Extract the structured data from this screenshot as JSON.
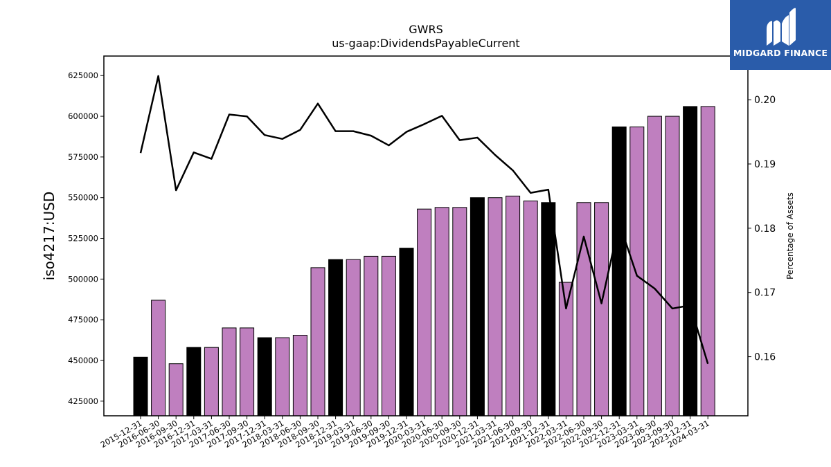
{
  "chart_data": {
    "type": "bar",
    "title": "GWRS",
    "subtitle": "us-gaap:DividendsPayableCurrent",
    "ylabel": "iso4217:USD",
    "y2label": "Percentage of Assets",
    "ylim": [
      416000,
      637000
    ],
    "y2lim": [
      0.1508,
      0.2068
    ],
    "yticks": [
      425000,
      450000,
      475000,
      500000,
      525000,
      550000,
      575000,
      600000,
      625000
    ],
    "y2ticks": [
      0.16,
      0.17,
      0.18,
      0.19,
      0.2
    ],
    "categories": [
      "2015-12-31",
      "2016-06-30",
      "2016-09-30",
      "2016-12-31",
      "2017-03-31",
      "2017-06-30",
      "2017-09-30",
      "2017-12-31",
      "2018-03-31",
      "2018-06-30",
      "2018-09-30",
      "2018-12-31",
      "2019-03-31",
      "2019-06-30",
      "2019-09-30",
      "2019-12-31",
      "2020-03-31",
      "2020-06-30",
      "2020-09-30",
      "2020-12-31",
      "2021-03-31",
      "2021-06-30",
      "2021-09-30",
      "2021-12-31",
      "2022-03-31",
      "2022-06-30",
      "2022-09-30",
      "2022-12-31",
      "2023-03-31",
      "2023-06-30",
      "2023-09-30",
      "2023-12-31",
      "2024-03-31"
    ],
    "series": [
      {
        "type": "bar",
        "values": [
          452000,
          487000,
          448000,
          458000,
          458000,
          470000,
          470000,
          464000,
          464000,
          465500,
          507000,
          512000,
          512000,
          514000,
          514000,
          519000,
          543000,
          544000,
          544000,
          550000,
          550000,
          551000,
          548000,
          547000,
          498000,
          547000,
          547000,
          593500,
          593500,
          600000,
          600000,
          606000,
          606000
        ],
        "colors": [
          "#000000",
          "#bf7fbf",
          "#bf7fbf",
          "#000000",
          "#bf7fbf",
          "#bf7fbf",
          "#bf7fbf",
          "#000000",
          "#bf7fbf",
          "#bf7fbf",
          "#bf7fbf",
          "#000000",
          "#bf7fbf",
          "#bf7fbf",
          "#bf7fbf",
          "#000000",
          "#bf7fbf",
          "#bf7fbf",
          "#bf7fbf",
          "#000000",
          "#bf7fbf",
          "#bf7fbf",
          "#bf7fbf",
          "#000000",
          "#bf7fbf",
          "#bf7fbf",
          "#bf7fbf",
          "#000000",
          "#bf7fbf",
          "#bf7fbf",
          "#bf7fbf",
          "#000000",
          "#bf7fbf"
        ]
      },
      {
        "type": "line",
        "axis": "right",
        "color": "#000000",
        "values": [
          0.1917,
          0.2037,
          0.1859,
          0.1918,
          0.1908,
          0.1977,
          0.1974,
          0.1945,
          0.1939,
          0.1953,
          0.1994,
          0.1951,
          0.1951,
          0.1944,
          0.1929,
          0.195,
          0.1962,
          0.1975,
          0.1937,
          0.1941,
          0.1914,
          0.189,
          0.1855,
          0.186,
          0.1675,
          0.1787,
          0.1683,
          0.1808,
          0.1726,
          0.1706,
          0.1675,
          0.168,
          0.1589
        ]
      }
    ],
    "grid": false
  },
  "logo": {
    "text": "MIDGARD FINANCE",
    "color": "#2a5caa"
  }
}
